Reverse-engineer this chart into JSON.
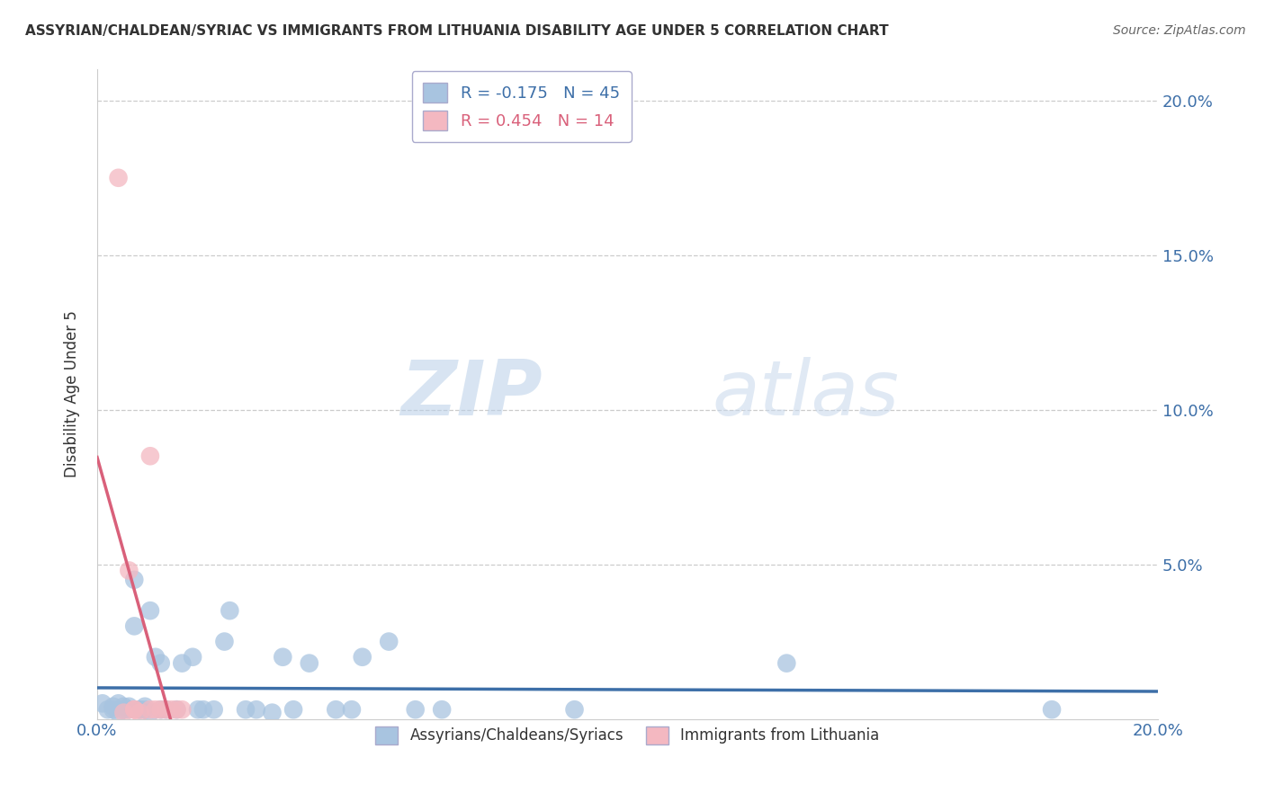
{
  "title": "ASSYRIAN/CHALDEAN/SYRIAC VS IMMIGRANTS FROM LITHUANIA DISABILITY AGE UNDER 5 CORRELATION CHART",
  "source": "Source: ZipAtlas.com",
  "ylabel": "Disability Age Under 5",
  "legend_blue": "Assyrians/Chaldeans/Syriacs",
  "legend_pink": "Immigrants from Lithuania",
  "R_blue": -0.175,
  "N_blue": 45,
  "R_pink": 0.454,
  "N_pink": 14,
  "watermark_zip": "ZIP",
  "watermark_atlas": "atlas",
  "blue_color": "#a8c4e0",
  "blue_line_color": "#3d6fa8",
  "pink_color": "#f4b8c1",
  "pink_line_color": "#d9607a",
  "blue_scatter": [
    [
      0.001,
      0.005
    ],
    [
      0.002,
      0.003
    ],
    [
      0.003,
      0.004
    ],
    [
      0.003,
      0.003
    ],
    [
      0.004,
      0.005
    ],
    [
      0.004,
      0.002
    ],
    [
      0.005,
      0.004
    ],
    [
      0.005,
      0.003
    ],
    [
      0.006,
      0.003
    ],
    [
      0.006,
      0.004
    ],
    [
      0.007,
      0.045
    ],
    [
      0.007,
      0.03
    ],
    [
      0.008,
      0.003
    ],
    [
      0.008,
      0.003
    ],
    [
      0.009,
      0.004
    ],
    [
      0.009,
      0.003
    ],
    [
      0.01,
      0.002
    ],
    [
      0.01,
      0.035
    ],
    [
      0.011,
      0.02
    ],
    [
      0.012,
      0.018
    ],
    [
      0.012,
      0.003
    ],
    [
      0.013,
      0.003
    ],
    [
      0.015,
      0.003
    ],
    [
      0.016,
      0.018
    ],
    [
      0.018,
      0.02
    ],
    [
      0.019,
      0.003
    ],
    [
      0.02,
      0.003
    ],
    [
      0.022,
      0.003
    ],
    [
      0.024,
      0.025
    ],
    [
      0.025,
      0.035
    ],
    [
      0.028,
      0.003
    ],
    [
      0.03,
      0.003
    ],
    [
      0.033,
      0.002
    ],
    [
      0.035,
      0.02
    ],
    [
      0.037,
      0.003
    ],
    [
      0.04,
      0.018
    ],
    [
      0.045,
      0.003
    ],
    [
      0.048,
      0.003
    ],
    [
      0.05,
      0.02
    ],
    [
      0.055,
      0.025
    ],
    [
      0.06,
      0.003
    ],
    [
      0.065,
      0.003
    ],
    [
      0.09,
      0.003
    ],
    [
      0.13,
      0.018
    ],
    [
      0.18,
      0.003
    ]
  ],
  "pink_scatter": [
    [
      0.004,
      0.175
    ],
    [
      0.005,
      0.002
    ],
    [
      0.006,
      0.048
    ],
    [
      0.007,
      0.003
    ],
    [
      0.007,
      0.003
    ],
    [
      0.008,
      0.002
    ],
    [
      0.01,
      0.085
    ],
    [
      0.01,
      0.003
    ],
    [
      0.011,
      0.003
    ],
    [
      0.012,
      0.003
    ],
    [
      0.013,
      0.003
    ],
    [
      0.014,
      0.003
    ],
    [
      0.015,
      0.003
    ],
    [
      0.016,
      0.003
    ]
  ],
  "xlim": [
    0.0,
    0.2
  ],
  "ylim": [
    0.0,
    0.21
  ],
  "yticks": [
    0.05,
    0.1,
    0.15,
    0.2
  ],
  "ytick_labels": [
    "5.0%",
    "10.0%",
    "15.0%",
    "20.0%"
  ],
  "xtick_left_label": "0.0%",
  "xtick_right_label": "20.0%"
}
